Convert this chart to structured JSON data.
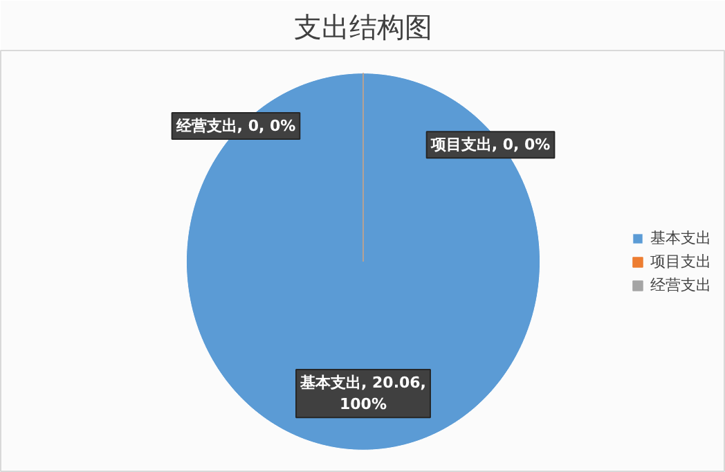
{
  "chart_data": {
    "type": "pie",
    "title": "支出结构图",
    "categories": [
      "基本支出",
      "项目支出",
      "经营支出"
    ],
    "values": [
      20.06,
      0,
      0
    ],
    "colors": [
      "#5b9bd5",
      "#ed7d31",
      "#a5a5a5"
    ],
    "value_labels": [
      "基本支出, 20.06, 100%",
      "项目支出, 0, 0%",
      "经营支出, 0, 0%"
    ],
    "legend": "right"
  }
}
